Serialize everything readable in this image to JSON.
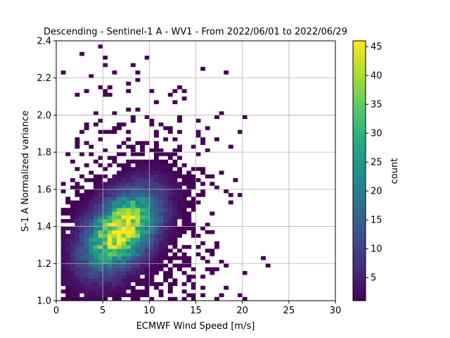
{
  "chart_data": {
    "type": "heatmap",
    "title": "Descending - Sentinel-1 A - WV1 - From 2022/06/01 to 2022/06/29",
    "xlabel": "ECMWF Wind Speed [m/s]",
    "ylabel": "S-1 A Normalized variance",
    "xlim": [
      0,
      30
    ],
    "ylim": [
      1.0,
      2.4
    ],
    "x_ticks": [
      "0",
      "5",
      "10",
      "15",
      "20",
      "25",
      "30"
    ],
    "y_ticks": [
      "1.0",
      "1.2",
      "1.4",
      "1.6",
      "1.8",
      "2.0",
      "2.2",
      "2.4"
    ],
    "grid": true,
    "colormap": "viridis",
    "colorbar": {
      "label": "count",
      "min": 1,
      "max": 46,
      "ticks": [
        "5",
        "10",
        "15",
        "20",
        "25",
        "30",
        "35",
        "40",
        "45"
      ]
    },
    "bins": {
      "x_width": 0.5,
      "y_width": 0.02
    },
    "density_model": {
      "peak_count": 46,
      "peak_wind_speed": 7.0,
      "peak_normalized_variance": 1.38,
      "spread_wind_speed": 2.6,
      "spread_normalized_variance": 0.14,
      "correlation": 0.45,
      "wind_speed_range": [
        0.5,
        25.5
      ],
      "normalized_variance_range": [
        1.0,
        2.38
      ]
    }
  }
}
